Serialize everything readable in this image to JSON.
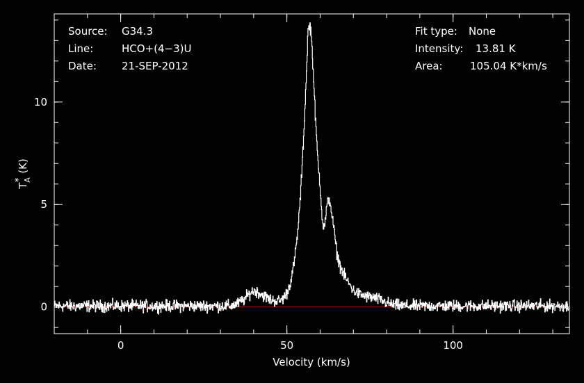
{
  "chart_data": {
    "type": "line",
    "title": "",
    "xlabel": "Velocity (km/s)",
    "ylabel": "T",
    "ylabel_sub": "A",
    "ylabel_sup": "*",
    "ylabel_unit": "(K)",
    "xlim": [
      -20,
      135
    ],
    "ylim": [
      -1.3,
      14.3
    ],
    "x_ticks": [
      {
        "value": 0,
        "label": "0"
      },
      {
        "value": 50,
        "label": "50"
      },
      {
        "value": 100,
        "label": "100"
      }
    ],
    "y_ticks": [
      {
        "value": 0,
        "label": "0"
      },
      {
        "value": 5,
        "label": "5"
      },
      {
        "value": 10,
        "label": "10"
      }
    ],
    "baseline": {
      "y": 0,
      "color": "#cc0000"
    },
    "series": [
      {
        "color": "#ffffff",
        "points": [
          [
            -20,
            0.05
          ],
          [
            -15,
            0.05
          ],
          [
            -10,
            0.05
          ],
          [
            -5,
            0.05
          ],
          [
            0,
            0.05
          ],
          [
            5,
            0.05
          ],
          [
            10,
            0.05
          ],
          [
            15,
            0.05
          ],
          [
            20,
            0.05
          ],
          [
            25,
            0.05
          ],
          [
            30,
            0.05
          ],
          [
            33,
            0.05
          ],
          [
            35,
            0.15
          ],
          [
            37,
            0.35
          ],
          [
            39,
            0.7
          ],
          [
            40,
            0.8
          ],
          [
            41,
            0.75
          ],
          [
            43,
            0.55
          ],
          [
            45,
            0.35
          ],
          [
            47,
            0.3
          ],
          [
            48,
            0.3
          ],
          [
            49,
            0.45
          ],
          [
            50,
            0.7
          ],
          [
            51,
            1.2
          ],
          [
            52,
            2.0
          ],
          [
            53,
            3.3
          ],
          [
            54,
            5.3
          ],
          [
            55,
            8.3
          ],
          [
            55.8,
            11.3
          ],
          [
            56.3,
            13.5
          ],
          [
            56.8,
            13.75
          ],
          [
            57.2,
            13.5
          ],
          [
            57.8,
            11.8
          ],
          [
            58.5,
            9.3
          ],
          [
            59.2,
            7.3
          ],
          [
            60,
            5.8
          ],
          [
            60.5,
            4.5
          ],
          [
            61,
            3.8
          ],
          [
            61.5,
            4.2
          ],
          [
            62,
            4.9
          ],
          [
            62.5,
            5.3
          ],
          [
            63,
            5.1
          ],
          [
            64,
            3.9
          ],
          [
            65,
            2.6
          ],
          [
            66,
            2.0
          ],
          [
            67,
            1.6
          ],
          [
            68,
            1.3
          ],
          [
            69,
            1.05
          ],
          [
            70,
            0.8
          ],
          [
            72,
            0.6
          ],
          [
            74,
            0.5
          ],
          [
            76,
            0.45
          ],
          [
            78,
            0.35
          ],
          [
            80,
            0.2
          ],
          [
            82,
            0.1
          ],
          [
            85,
            0.05
          ],
          [
            90,
            0.05
          ],
          [
            95,
            0.05
          ],
          [
            100,
            0.05
          ],
          [
            105,
            0.05
          ],
          [
            110,
            0.05
          ],
          [
            115,
            0.05
          ],
          [
            120,
            0.05
          ],
          [
            125,
            0.05
          ],
          [
            130,
            0.05
          ],
          [
            135,
            0.05
          ]
        ]
      }
    ]
  },
  "info": {
    "source_key": "Source:",
    "source_val": "G34.3",
    "line_key": "Line:",
    "line_val": "HCO+(4−3)U",
    "date_key": "Date:",
    "date_val": "21-SEP-2012",
    "fit_key": "Fit type:",
    "fit_val": "None",
    "intensity_key": "Intensity:",
    "intensity_val": "13.81 K",
    "area_key": "Area:",
    "area_val": "105.04 K*km/s"
  }
}
